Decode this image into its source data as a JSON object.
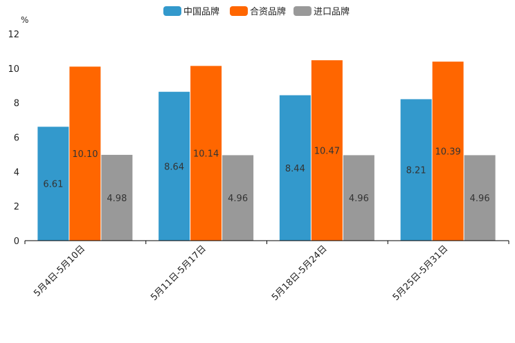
{
  "chart_data": {
    "type": "bar",
    "title": "",
    "xlabel": "",
    "ylabel": "%",
    "ylim": [
      0,
      12
    ],
    "yticks": [
      0,
      2,
      4,
      6,
      8,
      10,
      12
    ],
    "grid": false,
    "legend_position": "top-center",
    "categories": [
      "5月4日-5月10日",
      "5月11日-5月17日",
      "5月18日-5月24日",
      "5月25日-5月31日"
    ],
    "series": [
      {
        "name": "中国品牌",
        "color": "#3399cc",
        "values": [
          6.61,
          8.64,
          8.44,
          8.21
        ],
        "labels": [
          "6.61",
          "8.64",
          "8.44",
          "8.21"
        ]
      },
      {
        "name": "合资品牌",
        "color": "#ff6600",
        "values": [
          10.1,
          10.14,
          10.47,
          10.39
        ],
        "labels": [
          "10.10",
          "10.14",
          "10.47",
          "10.39"
        ]
      },
      {
        "name": "进口品牌",
        "color": "#999999",
        "values": [
          4.98,
          4.96,
          4.96,
          4.96
        ],
        "labels": [
          "4.98",
          "4.96",
          "4.96",
          "4.96"
        ]
      }
    ]
  }
}
